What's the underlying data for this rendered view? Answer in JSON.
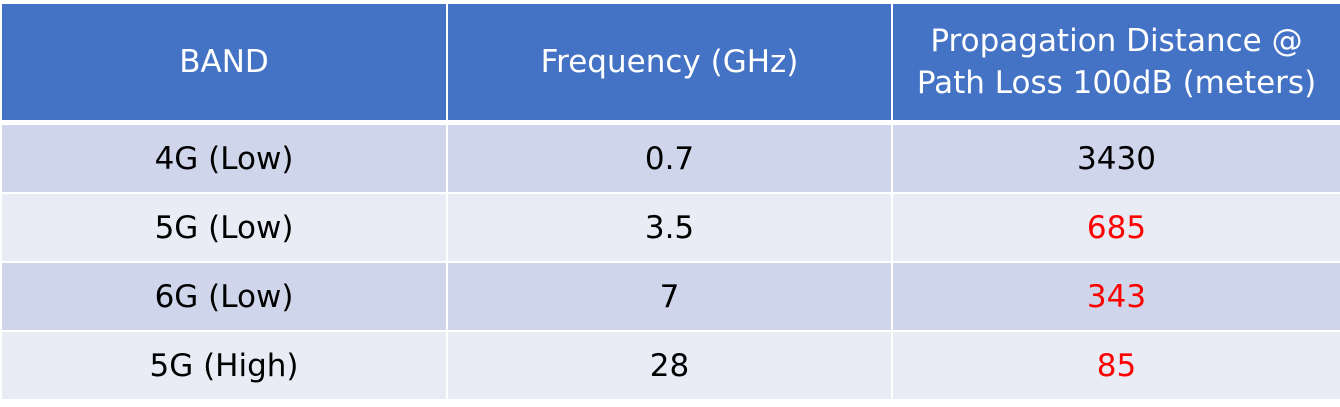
{
  "table": {
    "headers": [
      "BAND",
      "Frequency (GHz)",
      "Propagation Distance @ Path Loss 100dB (meters)"
    ],
    "rows": [
      {
        "band": "4G (Low)",
        "frequency": "0.7",
        "distance": "3430",
        "highlight": false
      },
      {
        "band": "5G (Low)",
        "frequency": "3.5",
        "distance": "685",
        "highlight": true
      },
      {
        "band": "6G (Low)",
        "frequency": "7",
        "distance": "343",
        "highlight": true
      },
      {
        "band": "5G (High)",
        "frequency": "28",
        "distance": "85",
        "highlight": true
      }
    ]
  },
  "colors": {
    "header_bg": "#4472c4",
    "row_odd": "#cfd5ea",
    "row_even": "#e9ebf5",
    "highlight_text": "#ff0000"
  }
}
